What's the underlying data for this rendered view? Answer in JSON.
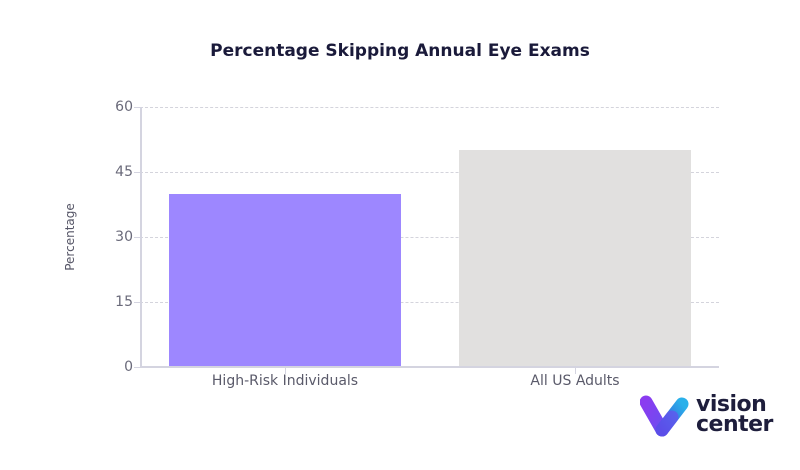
{
  "chart_data": {
    "type": "bar",
    "title": "Percentage Skipping Annual Eye Exams",
    "xlabel": "",
    "ylabel": "Percentage",
    "categories": [
      "High-Risk Individuals",
      "All US Adults"
    ],
    "values": [
      40,
      50
    ],
    "colors": [
      "#9d87ff",
      "#e1e0df"
    ],
    "ylim": [
      0,
      60
    ],
    "yticks": [
      0,
      15,
      30,
      45,
      60
    ],
    "grid": true,
    "legend": "none"
  },
  "labels": {
    "title": "Percentage Skipping Annual Eye Exams",
    "ylabel": "Percentage",
    "yticks": [
      "0",
      "15",
      "30",
      "45",
      "60"
    ],
    "categories": [
      "High-Risk Individuals",
      "All US Adults"
    ]
  },
  "logo": {
    "line1": "vision",
    "line2": "center",
    "colors": {
      "left": "#7b3ff2",
      "right": "#2a9fe6",
      "text": "#1e1e3c"
    }
  }
}
